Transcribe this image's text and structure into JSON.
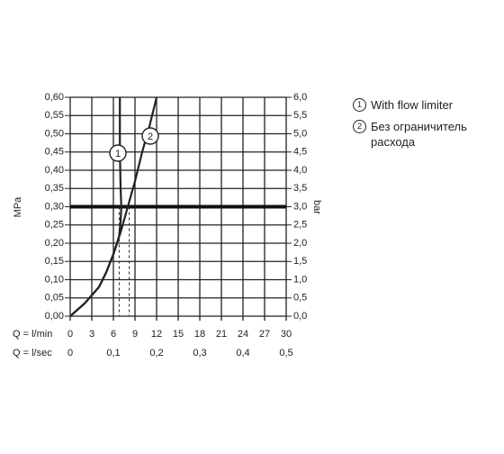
{
  "chart_data": {
    "type": "line",
    "ylabel": "MPa",
    "y2label": "bar",
    "xlabel": "Q = l/min",
    "x2label": "Q = l/sec",
    "xlim": [
      0,
      30
    ],
    "xticks": [
      0,
      3,
      6,
      9,
      12,
      15,
      18,
      21,
      24,
      27,
      30
    ],
    "x2lim": [
      0,
      0.5
    ],
    "x2ticks": [
      0,
      {
        "value": 0.1,
        "label": "0,1"
      },
      {
        "value": 0.2,
        "label": "0,2"
      },
      {
        "value": 0.3,
        "label": "0,3"
      },
      {
        "value": 0.4,
        "label": "0,4"
      },
      {
        "value": 0.5,
        "label": "0,5"
      }
    ],
    "ylim": [
      0,
      0.6
    ],
    "yticks": [
      {
        "value": 0,
        "label": "0,00"
      },
      {
        "value": 0.05,
        "label": "0,05"
      },
      {
        "value": 0.1,
        "label": "0,10"
      },
      {
        "value": 0.15,
        "label": "0,15"
      },
      {
        "value": 0.2,
        "label": "0,20"
      },
      {
        "value": 0.25,
        "label": "0,25"
      },
      {
        "value": 0.3,
        "label": "0,30"
      },
      {
        "value": 0.35,
        "label": "0,35"
      },
      {
        "value": 0.4,
        "label": "0,40"
      },
      {
        "value": 0.45,
        "label": "0,45"
      },
      {
        "value": 0.5,
        "label": "0,50"
      },
      {
        "value": 0.55,
        "label": "0,55"
      },
      {
        "value": 0.6,
        "label": "0,60"
      }
    ],
    "y2lim": [
      0,
      6
    ],
    "y2ticks": [
      {
        "value": 0,
        "label": "0,0"
      },
      {
        "value": 0.5,
        "label": "0,5"
      },
      {
        "value": 1,
        "label": "1,0"
      },
      {
        "value": 1.5,
        "label": "1,5"
      },
      {
        "value": 2,
        "label": "2,0"
      },
      {
        "value": 2.5,
        "label": "2,5"
      },
      {
        "value": 3,
        "label": "3,0"
      },
      {
        "value": 3.5,
        "label": "3,5"
      },
      {
        "value": 4,
        "label": "4,0"
      },
      {
        "value": 4.5,
        "label": "4,5"
      },
      {
        "value": 5,
        "label": "5,0"
      },
      {
        "value": 5.5,
        "label": "5,5"
      },
      {
        "value": 6,
        "label": "6,0"
      }
    ],
    "grid": true,
    "reference_y": 0.3,
    "reference_x": [
      6.8,
      8.2
    ],
    "series": [
      {
        "name": "With flow limiter",
        "label": "1",
        "color": "#222222",
        "x": [
          0,
          2,
          4,
          5,
          6,
          6.5,
          6.8,
          7,
          7.1,
          7,
          6.9,
          6.9
        ],
        "values": [
          0,
          0.035,
          0.08,
          0.12,
          0.17,
          0.2,
          0.22,
          0.26,
          0.3,
          0.35,
          0.45,
          0.6
        ]
      },
      {
        "name": "Без ограничитель расхода",
        "label": "2",
        "color": "#222222",
        "x": [
          0,
          2,
          4,
          5,
          6,
          6.5,
          7,
          8,
          9,
          10,
          11,
          12
        ],
        "values": [
          0,
          0.035,
          0.08,
          0.12,
          0.17,
          0.2,
          0.23,
          0.3,
          0.37,
          0.45,
          0.52,
          0.6
        ]
      }
    ]
  }
}
